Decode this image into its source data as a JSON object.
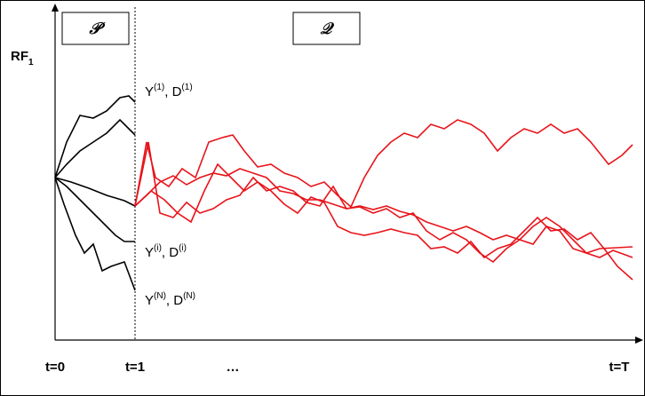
{
  "panels": [
    {
      "label": "𝒫"
    },
    {
      "label": "𝒬"
    }
  ],
  "y_axis": {
    "label": "RF",
    "subscript": "1"
  },
  "x_axis": {
    "labels": [
      "t=0",
      "t=1",
      "…",
      "t=T"
    ]
  },
  "path_labels": [
    {
      "parts": [
        "Y",
        "(1)",
        ", D",
        "(1)"
      ]
    },
    {
      "parts": [
        "Y",
        "(i)",
        ", D",
        "(i)"
      ]
    },
    {
      "parts": [
        "Y",
        "(N)",
        ", D",
        "(N)"
      ]
    }
  ]
}
